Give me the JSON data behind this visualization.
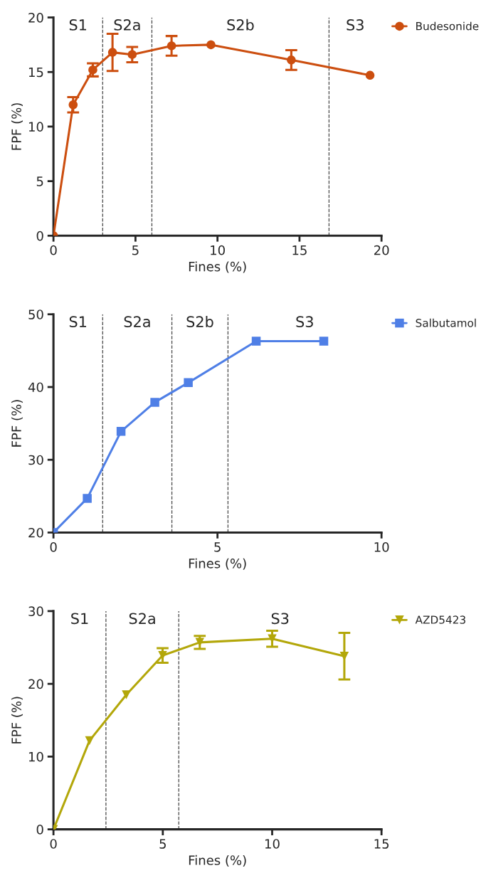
{
  "chart_data": [
    {
      "type": "line",
      "xlabel": "Fines (%)",
      "ylabel": "FPF (%)",
      "xlim": [
        0,
        20
      ],
      "xticks": [
        0,
        5,
        10,
        15,
        20
      ],
      "ylim": [
        0,
        20
      ],
      "yticks": [
        0,
        5,
        10,
        15,
        20
      ],
      "grid": false,
      "legend": "right",
      "marker": "circle",
      "line_style": "solid",
      "x": [
        0,
        1.2,
        2.4,
        3.6,
        4.8,
        7.2,
        9.6,
        14.5,
        19.3
      ],
      "series": [
        {
          "name": "Budesonide",
          "color": "#cc4e0f",
          "values": [
            0,
            12.0,
            15.2,
            16.8,
            16.6,
            17.4,
            17.5,
            16.1,
            14.7
          ],
          "errors": [
            null,
            0.7,
            0.6,
            1.7,
            0.7,
            0.9,
            null,
            0.9,
            null
          ]
        }
      ],
      "ref_lines": [
        {
          "axis": "x",
          "value": 3.0,
          "line_style": "dashed"
        },
        {
          "axis": "x",
          "value": 6.0,
          "line_style": "dashed"
        },
        {
          "axis": "x",
          "value": 16.8,
          "line_style": "dashed"
        }
      ],
      "annotations": [
        "S1",
        "S2a",
        "S2b",
        "S3"
      ]
    },
    {
      "type": "line",
      "xlabel": "Fines (%)",
      "ylabel": "FPF (%)",
      "xlim": [
        0,
        10
      ],
      "xticks": [
        0,
        5,
        10
      ],
      "ylim": [
        20,
        50
      ],
      "yticks": [
        20,
        30,
        40,
        50
      ],
      "grid": false,
      "legend": "right",
      "marker": "square",
      "line_style": "solid",
      "x": [
        0,
        1.03,
        2.06,
        3.09,
        4.11,
        6.18,
        8.24
      ],
      "series": [
        {
          "name": "Salbutamol",
          "color": "#4f7fe6",
          "values": [
            20,
            24.7,
            33.9,
            37.9,
            40.6,
            46.3,
            46.3
          ]
        }
      ],
      "ref_lines": [
        {
          "axis": "x",
          "value": 1.5,
          "line_style": "dashed"
        },
        {
          "axis": "x",
          "value": 3.61,
          "line_style": "dashed"
        },
        {
          "axis": "x",
          "value": 5.32,
          "line_style": "dashed"
        }
      ],
      "annotations": [
        "S1",
        "S2a",
        "S2b",
        "S3"
      ]
    },
    {
      "type": "line",
      "xlabel": "Fines (%)",
      "ylabel": "FPF (%)",
      "xlim": [
        0,
        15
      ],
      "xticks": [
        0,
        5,
        10,
        15
      ],
      "ylim": [
        0,
        30
      ],
      "yticks": [
        0,
        10,
        20,
        30
      ],
      "grid": false,
      "legend": "right",
      "marker": "triangle",
      "line_style": "solid",
      "x": [
        0,
        1.65,
        3.33,
        4.99,
        6.69,
        10.0,
        13.3
      ],
      "series": [
        {
          "name": "AZD5423",
          "color": "#b3a70a",
          "values": [
            0,
            12.2,
            18.5,
            23.9,
            25.7,
            26.2,
            23.8
          ],
          "errors": [
            null,
            null,
            null,
            1.0,
            0.9,
            1.1,
            3.2
          ]
        }
      ],
      "ref_lines": [
        {
          "axis": "x",
          "value": 2.4,
          "line_style": "dashed"
        },
        {
          "axis": "x",
          "value": 5.73,
          "line_style": "dashed"
        }
      ],
      "annotations": [
        "S1",
        "S2a",
        "S3"
      ]
    }
  ]
}
